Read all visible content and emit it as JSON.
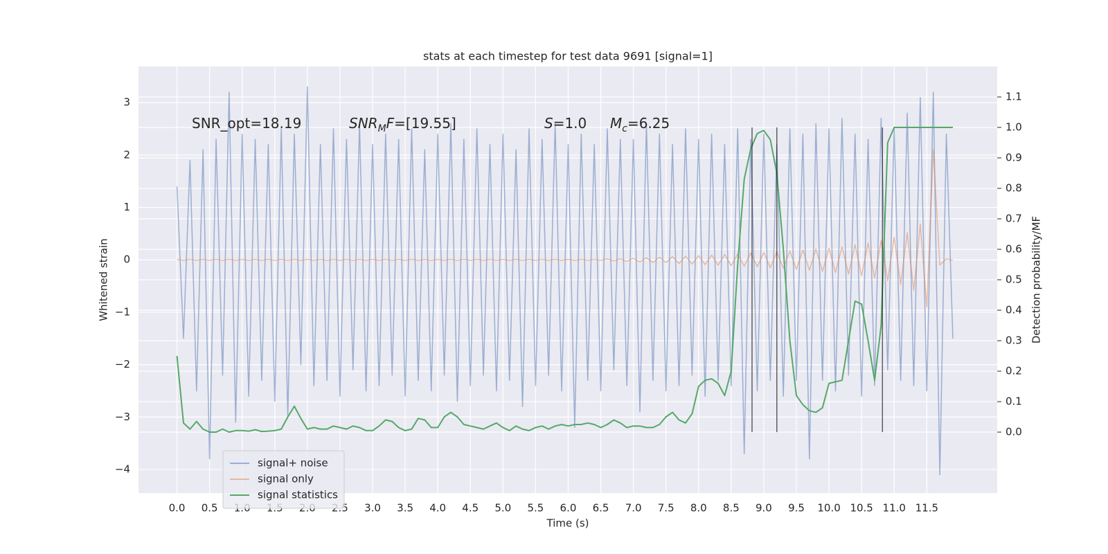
{
  "chart_data": {
    "type": "line",
    "title": "stats at each timestep for test data 9691 [signal=1]",
    "xlabel": "Time (s)",
    "ylabel": "Whitened strain",
    "y2label": "Detection probability/MF",
    "xlim": [
      -0.59,
      12.58
    ],
    "ylim": [
      -4.45,
      3.69
    ],
    "y2lim": [
      -0.2,
      1.2
    ],
    "xticks": [
      {
        "value": 0,
        "label": "0.0"
      },
      0.5,
      {
        "value": 1,
        "label": "1.0"
      },
      1.5,
      {
        "value": 2,
        "label": "2.0"
      },
      2.5,
      {
        "value": 3,
        "label": "3.0"
      },
      3.5,
      {
        "value": 4,
        "label": "4.0"
      },
      4.5,
      {
        "value": 5,
        "label": "5.0"
      },
      5.5,
      {
        "value": 6,
        "label": "6.0"
      },
      6.5,
      {
        "value": 7,
        "label": "7.0"
      },
      7.5,
      {
        "value": 8,
        "label": "8.0"
      },
      8.5,
      {
        "value": 9,
        "label": "9.0"
      },
      9.5,
      {
        "value": 10,
        "label": "10.0"
      },
      10.5,
      {
        "value": 11,
        "label": "11.0"
      },
      11.5
    ],
    "yticks": [
      {
        "value": -4,
        "label": "−4"
      },
      {
        "value": -3,
        "label": "−3"
      },
      {
        "value": -2,
        "label": "−2"
      },
      {
        "value": -1,
        "label": "−1"
      },
      0,
      1,
      2,
      3
    ],
    "y2ticks": [
      {
        "value": 0,
        "label": "0.0"
      },
      0.1,
      0.2,
      0.3,
      0.4,
      0.5,
      0.6,
      0.7,
      0.8,
      0.9,
      {
        "value": 1,
        "label": "1.0"
      },
      1.1
    ],
    "grid": true,
    "legend": "lower left",
    "x": [
      0,
      0.1,
      0.2,
      0.3,
      0.4,
      0.5,
      0.6,
      0.7,
      0.8,
      0.9,
      1,
      1.1,
      1.2,
      1.3,
      1.4,
      1.5,
      1.6,
      1.7,
      1.8,
      1.9,
      2,
      2.1,
      2.2,
      2.3,
      2.4,
      2.5,
      2.6,
      2.7,
      2.8,
      2.9,
      3,
      3.1,
      3.2,
      3.3,
      3.4,
      3.5,
      3.6,
      3.7,
      3.8,
      3.9,
      4,
      4.1,
      4.2,
      4.3,
      4.4,
      4.5,
      4.6,
      4.7,
      4.8,
      4.9,
      5,
      5.1,
      5.2,
      5.3,
      5.4,
      5.5,
      5.6,
      5.7,
      5.8,
      5.9,
      6,
      6.1,
      6.2,
      6.3,
      6.4,
      6.5,
      6.6,
      6.7,
      6.8,
      6.9,
      7,
      7.1,
      7.2,
      7.3,
      7.4,
      7.5,
      7.6,
      7.7,
      7.8,
      7.9,
      8,
      8.1,
      8.2,
      8.3,
      8.4,
      8.5,
      8.6,
      8.7,
      8.8,
      8.9,
      9,
      9.1,
      9.2,
      9.3,
      9.4,
      9.5,
      9.6,
      9.7,
      9.8,
      9.9,
      10,
      10.1,
      10.2,
      10.3,
      10.4,
      10.5,
      10.6,
      10.7,
      10.8,
      10.9,
      11,
      11.1,
      11.2,
      11.3,
      11.4,
      11.5,
      11.6,
      11.7,
      11.8,
      11.9
    ],
    "series": [
      {
        "name": "signal+ noise",
        "color": "#4c72b0",
        "alpha": 0.5,
        "values": [
          1.4,
          -1.5,
          1.9,
          -2.5,
          2.1,
          -3.8,
          2.3,
          -2.2,
          3.2,
          -3.1,
          2.4,
          -2.6,
          2.3,
          -2.3,
          2.2,
          -2.7,
          2.5,
          -3.0,
          2.4,
          -2.0,
          3.3,
          -2.4,
          2.2,
          -2.3,
          2.5,
          -2.6,
          2.3,
          -2.1,
          2.6,
          -2.5,
          2.2,
          -2.4,
          2.4,
          -2.2,
          2.3,
          -2.6,
          2.5,
          -2.3,
          2.1,
          -2.5,
          2.4,
          -2.2,
          2.6,
          -2.7,
          2.3,
          -2.4,
          2.5,
          -2.2,
          2.2,
          -2.5,
          2.4,
          -2.3,
          2.1,
          -2.8,
          2.5,
          -2.4,
          2.3,
          -2.2,
          2.6,
          -2.5,
          2.2,
          -3.2,
          2.4,
          -2.3,
          2.2,
          -2.5,
          2.5,
          -2.1,
          2.3,
          -2.4,
          2.3,
          -2.9,
          2.6,
          -2.3,
          2.4,
          -2.5,
          2.2,
          -2.4,
          2.5,
          -2.2,
          2.3,
          -2.6,
          2.4,
          -2.3,
          2.2,
          -2.4,
          2.5,
          -3.7,
          2.3,
          -2.5,
          2.4,
          -2.3,
          2.2,
          -2.6,
          2.5,
          -2.3,
          2.4,
          -3.8,
          2.6,
          -2.3,
          2.5,
          -2.5,
          2.7,
          -2.2,
          2.4,
          -2.6,
          2.3,
          -2.4,
          2.7,
          -2.1,
          2.5,
          -2.3,
          2.8,
          -2.4,
          3.1,
          -2.5,
          3.2,
          -4.1,
          2.4,
          -1.5
        ]
      },
      {
        "name": "signal only",
        "color": "#dd8452",
        "alpha": 0.5,
        "values": [
          0.01,
          -0.01,
          0.01,
          -0.01,
          0.01,
          -0.01,
          0.01,
          -0.01,
          0.01,
          -0.01,
          0.01,
          -0.01,
          0.01,
          -0.01,
          0.01,
          -0.01,
          0.01,
          -0.01,
          0.01,
          -0.01,
          0.01,
          -0.01,
          0.01,
          -0.01,
          0.01,
          -0.01,
          0.01,
          -0.01,
          0.01,
          -0.01,
          0.01,
          -0.01,
          0.01,
          -0.01,
          0.01,
          -0.01,
          0.01,
          -0.01,
          0.01,
          -0.01,
          0.01,
          -0.01,
          0.01,
          -0.01,
          0.01,
          -0.01,
          0.01,
          -0.01,
          0.01,
          -0.01,
          0.01,
          -0.01,
          0.01,
          -0.01,
          0.01,
          -0.01,
          0.01,
          -0.01,
          0.01,
          -0.01,
          0.01,
          -0.01,
          0.01,
          -0.01,
          0.01,
          -0.01,
          0.02,
          -0.02,
          0.02,
          -0.03,
          0.03,
          -0.04,
          0.04,
          -0.05,
          0.05,
          -0.05,
          0.06,
          -0.07,
          0.07,
          -0.08,
          0.08,
          -0.09,
          0.09,
          -0.1,
          0.1,
          -0.11,
          0.11,
          -0.12,
          0.13,
          -0.13,
          0.14,
          -0.15,
          0.15,
          -0.16,
          0.17,
          -0.18,
          0.19,
          -0.2,
          0.21,
          -0.22,
          0.22,
          -0.24,
          0.25,
          -0.27,
          0.29,
          -0.3,
          0.32,
          -0.35,
          0.37,
          -0.4,
          0.43,
          -0.47,
          0.52,
          -0.58,
          0.68,
          -0.9,
          2.1,
          -0.1,
          0.02,
          -0.01
        ]
      },
      {
        "name": "signal statistics",
        "color": "#55a868",
        "alpha": 1,
        "axis": "y2",
        "values": [
          0.25,
          0.03,
          0.01,
          0.035,
          0.01,
          0.0,
          0.0,
          0.01,
          0.0,
          0.005,
          0.005,
          0.003,
          0.008,
          0.002,
          0.003,
          0.005,
          0.01,
          0.05,
          0.085,
          0.045,
          0.01,
          0.015,
          0.01,
          0.01,
          0.02,
          0.015,
          0.01,
          0.02,
          0.015,
          0.005,
          0.005,
          0.02,
          0.04,
          0.035,
          0.015,
          0.005,
          0.01,
          0.045,
          0.04,
          0.015,
          0.015,
          0.05,
          0.065,
          0.05,
          0.025,
          0.02,
          0.015,
          0.01,
          0.02,
          0.03,
          0.015,
          0.005,
          0.02,
          0.01,
          0.005,
          0.015,
          0.02,
          0.01,
          0.02,
          0.025,
          0.02,
          0.025,
          0.025,
          0.03,
          0.025,
          0.015,
          0.025,
          0.04,
          0.03,
          0.015,
          0.02,
          0.02,
          0.015,
          0.015,
          0.025,
          0.05,
          0.065,
          0.04,
          0.03,
          0.06,
          0.15,
          0.17,
          0.175,
          0.16,
          0.12,
          0.2,
          0.55,
          0.83,
          0.93,
          0.98,
          0.99,
          0.96,
          0.85,
          0.6,
          0.3,
          0.12,
          0.09,
          0.07,
          0.065,
          0.08,
          0.16,
          0.165,
          0.17,
          0.3,
          0.43,
          0.42,
          0.3,
          0.17,
          0.35,
          0.95,
          1.0,
          1.0,
          1.0,
          1.0,
          1.0,
          1.0,
          1.0,
          1.0,
          1.0,
          1.0
        ]
      }
    ],
    "vlines": {
      "x": [
        8.82,
        9.2,
        10.82
      ],
      "ymin": 0,
      "ymax": 1.0,
      "axis": "y2",
      "color": "#000000",
      "alpha": 0.6
    },
    "annotations": [
      [
        {
          "text": "SNR_opt=18.19",
          "style": "normal"
        }
      ],
      [
        {
          "text": "SNR",
          "style": "italic"
        },
        {
          "text": "M",
          "style": "sub"
        },
        {
          "text": "F",
          "style": "italic"
        },
        {
          "text": "=[19.55]",
          "style": "normal"
        }
      ],
      [
        {
          "text": "S",
          "style": "italic"
        },
        {
          "text": "=1.0",
          "style": "normal"
        }
      ],
      [
        {
          "text": "M",
          "style": "italic"
        },
        {
          "text": "c",
          "style": "sub"
        },
        {
          "text": "=6.25",
          "style": "normal"
        }
      ]
    ]
  }
}
